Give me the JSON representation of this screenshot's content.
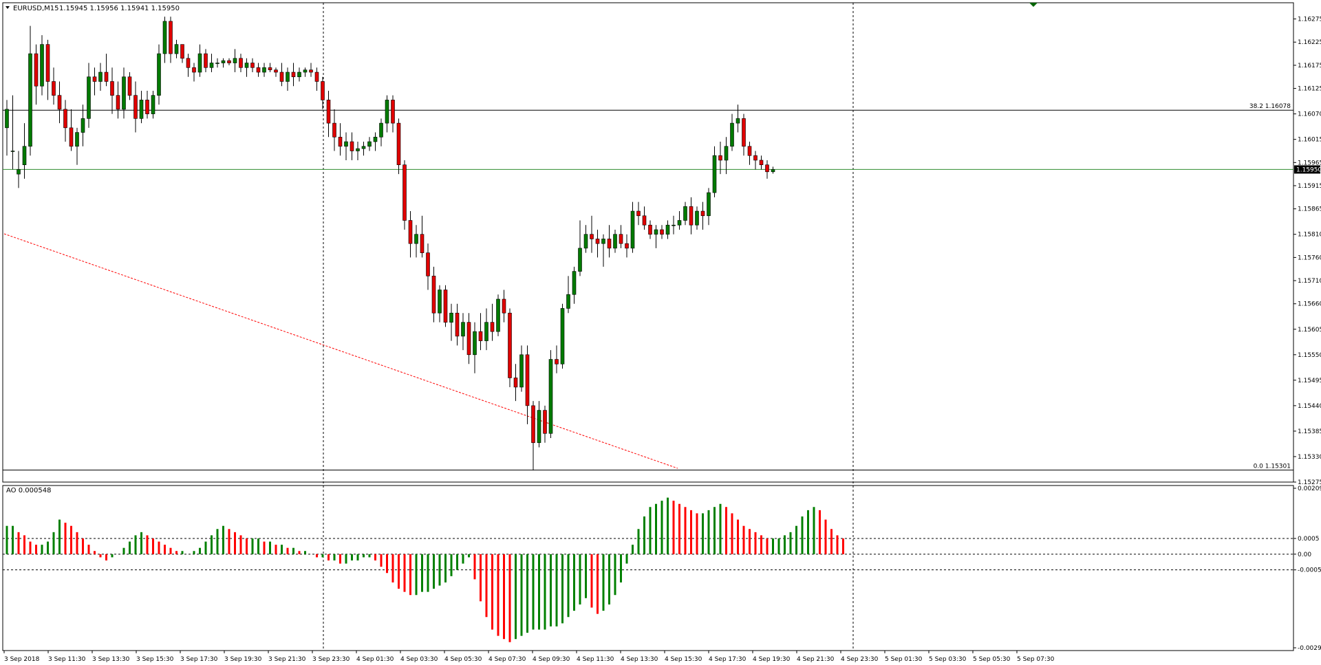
{
  "header": {
    "symbol": "EURUSD,M15",
    "ohlc": "1.15945 1.15956 1.15941 1.15950",
    "indicator": "AO 0.000548"
  },
  "colors": {
    "bull": "#007a00",
    "bear": "#e00000",
    "ao_up": "#008000",
    "ao_down": "#ff0000",
    "price_line": "#2e8b2e",
    "fibo": "#000000",
    "trend": "#ff0000",
    "grid": "#000000"
  },
  "icons": {
    "collapse": "triangle-down-icon",
    "marker": "green-arrow-down-icon"
  },
  "chart_data": {
    "type": "candlestick",
    "price_axis": {
      "ylim": [
        1.15275,
        1.1631
      ],
      "ticks": [
        "1.16275",
        "1.16225",
        "1.16175",
        "1.16125",
        "1.16070",
        "1.16015",
        "1.15965",
        "1.15915",
        "1.15865",
        "1.15810",
        "1.15760",
        "1.15710",
        "1.15660",
        "1.15605",
        "1.15550",
        "1.15495",
        "1.15440",
        "1.15385",
        "1.15330",
        "1.15275"
      ]
    },
    "current_price": "1.15950",
    "fibo": [
      {
        "label": "38.2 1.16078",
        "price": 1.16078
      },
      {
        "label": "0.0 1.15301",
        "price": 1.15301
      }
    ],
    "x_labels": [
      "3 Sep 2018",
      "3 Sep 11:30",
      "3 Sep 13:30",
      "3 Sep 15:30",
      "3 Sep 17:30",
      "3 Sep 19:30",
      "3 Sep 21:30",
      "3 Sep 23:30",
      "4 Sep 01:30",
      "4 Sep 03:30",
      "4 Sep 05:30",
      "4 Sep 07:30",
      "4 Sep 09:30",
      "4 Sep 11:30",
      "4 Sep 13:30",
      "4 Sep 15:30",
      "4 Sep 17:30",
      "4 Sep 19:30",
      "4 Sep 21:30",
      "4 Sep 23:30",
      "5 Sep 01:30",
      "5 Sep 03:30",
      "5 Sep 05:30",
      "5 Sep 07:30"
    ],
    "candles": [
      [
        1.1604,
        1.161,
        1.1598,
        1.1608
      ],
      [
        1.1599,
        1.1611,
        1.1595,
        1.1599
      ],
      [
        1.1594,
        1.1599,
        1.1591,
        1.1595
      ],
      [
        1.1596,
        1.1605,
        1.1593,
        1.16
      ],
      [
        1.16,
        1.1626,
        1.1598,
        1.162
      ],
      [
        1.162,
        1.1622,
        1.1609,
        1.1613
      ],
      [
        1.1613,
        1.1624,
        1.1611,
        1.1622
      ],
      [
        1.1622,
        1.1623,
        1.161,
        1.1614
      ],
      [
        1.1614,
        1.1617,
        1.1609,
        1.1611
      ],
      [
        1.1611,
        1.1614,
        1.1605,
        1.1608
      ],
      [
        1.1608,
        1.161,
        1.1601,
        1.1604
      ],
      [
        1.1604,
        1.1608,
        1.1599,
        1.16
      ],
      [
        1.16,
        1.1604,
        1.1596,
        1.1603
      ],
      [
        1.1603,
        1.1609,
        1.16,
        1.1606
      ],
      [
        1.1606,
        1.1618,
        1.1604,
        1.1615
      ],
      [
        1.1615,
        1.1617,
        1.1611,
        1.1614
      ],
      [
        1.1614,
        1.1618,
        1.1612,
        1.1616
      ],
      [
        1.1616,
        1.162,
        1.1613,
        1.1614
      ],
      [
        1.1614,
        1.1617,
        1.1607,
        1.1611
      ],
      [
        1.1611,
        1.1614,
        1.1606,
        1.1608
      ],
      [
        1.1608,
        1.1617,
        1.1606,
        1.1615
      ],
      [
        1.1615,
        1.1616,
        1.161,
        1.1611
      ],
      [
        1.1611,
        1.1614,
        1.1603,
        1.1606
      ],
      [
        1.1606,
        1.1612,
        1.1605,
        1.161
      ],
      [
        1.161,
        1.1612,
        1.1606,
        1.1607
      ],
      [
        1.1607,
        1.1612,
        1.1606,
        1.1611
      ],
      [
        1.1611,
        1.1622,
        1.1609,
        1.162
      ],
      [
        1.162,
        1.1628,
        1.1618,
        1.1627
      ],
      [
        1.1627,
        1.1628,
        1.1618,
        1.162
      ],
      [
        1.162,
        1.1623,
        1.1619,
        1.1622
      ],
      [
        1.1622,
        1.1622,
        1.1618,
        1.1619
      ],
      [
        1.1619,
        1.162,
        1.1615,
        1.1617
      ],
      [
        1.1617,
        1.1618,
        1.1614,
        1.1616
      ],
      [
        1.1616,
        1.1622,
        1.1615,
        1.162
      ],
      [
        1.162,
        1.1621,
        1.1616,
        1.1617
      ],
      [
        1.1617,
        1.162,
        1.1616,
        1.1618
      ],
      [
        1.1618,
        1.1619,
        1.1617,
        1.1618
      ],
      [
        1.1618,
        1.1619,
        1.1617,
        1.16185
      ],
      [
        1.16185,
        1.1619,
        1.16175,
        1.1618
      ],
      [
        1.1618,
        1.1621,
        1.1616,
        1.1619
      ],
      [
        1.1619,
        1.162,
        1.1616,
        1.1617
      ],
      [
        1.1617,
        1.1619,
        1.1615,
        1.1618
      ],
      [
        1.1618,
        1.1619,
        1.1616,
        1.1617
      ],
      [
        1.1617,
        1.1618,
        1.1615,
        1.1616
      ],
      [
        1.1616,
        1.1618,
        1.1615,
        1.1617
      ],
      [
        1.1617,
        1.1618,
        1.1616,
        1.16165
      ],
      [
        1.16165,
        1.1617,
        1.1615,
        1.1616
      ],
      [
        1.1616,
        1.1618,
        1.1613,
        1.1614
      ],
      [
        1.1614,
        1.1617,
        1.1612,
        1.1616
      ],
      [
        1.1616,
        1.1618,
        1.1613,
        1.1615
      ],
      [
        1.1615,
        1.1617,
        1.1614,
        1.1616
      ],
      [
        1.1616,
        1.1617,
        1.1615,
        1.16165
      ],
      [
        1.16165,
        1.1618,
        1.1615,
        1.1616
      ],
      [
        1.1616,
        1.1617,
        1.1612,
        1.1614
      ],
      [
        1.1614,
        1.1615,
        1.1608,
        1.161
      ],
      [
        1.161,
        1.1612,
        1.1602,
        1.1605
      ],
      [
        1.1605,
        1.1608,
        1.1599,
        1.1602
      ],
      [
        1.1602,
        1.1605,
        1.1598,
        1.16
      ],
      [
        1.16,
        1.1603,
        1.1597,
        1.1601
      ],
      [
        1.1601,
        1.1603,
        1.1597,
        1.1599
      ],
      [
        1.1599,
        1.1601,
        1.1597,
        1.15995
      ],
      [
        1.15995,
        1.1601,
        1.1598,
        1.16
      ],
      [
        1.16,
        1.1602,
        1.1599,
        1.1601
      ],
      [
        1.1601,
        1.1603,
        1.1599,
        1.1602
      ],
      [
        1.1602,
        1.1606,
        1.16,
        1.1605
      ],
      [
        1.1605,
        1.1611,
        1.1603,
        1.161
      ],
      [
        1.161,
        1.1611,
        1.1603,
        1.1605
      ],
      [
        1.1605,
        1.1606,
        1.1594,
        1.1596
      ],
      [
        1.1596,
        1.1597,
        1.1582,
        1.1584
      ],
      [
        1.1584,
        1.1586,
        1.1576,
        1.1579
      ],
      [
        1.1579,
        1.1583,
        1.1576,
        1.1581
      ],
      [
        1.1581,
        1.1585,
        1.1576,
        1.1577
      ],
      [
        1.1577,
        1.1579,
        1.1569,
        1.1572
      ],
      [
        1.1572,
        1.1574,
        1.1562,
        1.1564
      ],
      [
        1.1564,
        1.157,
        1.1562,
        1.1569
      ],
      [
        1.1569,
        1.157,
        1.1561,
        1.1562
      ],
      [
        1.1562,
        1.1566,
        1.1558,
        1.1564
      ],
      [
        1.1564,
        1.1566,
        1.1557,
        1.1559
      ],
      [
        1.1559,
        1.1564,
        1.1556,
        1.1562
      ],
      [
        1.1562,
        1.1564,
        1.1553,
        1.1555
      ],
      [
        1.1555,
        1.1562,
        1.1551,
        1.156
      ],
      [
        1.156,
        1.1564,
        1.1556,
        1.1558
      ],
      [
        1.1558,
        1.1565,
        1.1556,
        1.1562
      ],
      [
        1.1562,
        1.1566,
        1.1558,
        1.156
      ],
      [
        1.156,
        1.1568,
        1.1559,
        1.1567
      ],
      [
        1.1567,
        1.1569,
        1.1562,
        1.1564
      ],
      [
        1.1564,
        1.1565,
        1.1548,
        1.155
      ],
      [
        1.155,
        1.1553,
        1.1545,
        1.1548
      ],
      [
        1.1548,
        1.1557,
        1.1547,
        1.1555
      ],
      [
        1.1555,
        1.1557,
        1.154,
        1.1544
      ],
      [
        1.1544,
        1.1545,
        1.153,
        1.1536
      ],
      [
        1.1536,
        1.1545,
        1.1535,
        1.1543
      ],
      [
        1.1543,
        1.1544,
        1.1536,
        1.1538
      ],
      [
        1.1538,
        1.1556,
        1.1537,
        1.1554
      ],
      [
        1.1554,
        1.1557,
        1.1551,
        1.1553
      ],
      [
        1.1553,
        1.1566,
        1.1552,
        1.1565
      ],
      [
        1.1565,
        1.1572,
        1.1564,
        1.1568
      ],
      [
        1.1568,
        1.1574,
        1.1566,
        1.1573
      ],
      [
        1.1573,
        1.1584,
        1.1572,
        1.1578
      ],
      [
        1.1578,
        1.1583,
        1.1577,
        1.1581
      ],
      [
        1.1581,
        1.1585,
        1.1577,
        1.158
      ],
      [
        1.158,
        1.1582,
        1.1576,
        1.1579
      ],
      [
        1.1579,
        1.1581,
        1.1574,
        1.158
      ],
      [
        1.158,
        1.1583,
        1.1576,
        1.1578
      ],
      [
        1.1578,
        1.1582,
        1.1577,
        1.1581
      ],
      [
        1.1581,
        1.1583,
        1.1578,
        1.1579
      ],
      [
        1.1579,
        1.1581,
        1.1576,
        1.1578
      ],
      [
        1.1578,
        1.1588,
        1.1577,
        1.1586
      ],
      [
        1.1586,
        1.1588,
        1.1583,
        1.1585
      ],
      [
        1.1585,
        1.1587,
        1.1582,
        1.1583
      ],
      [
        1.1583,
        1.1584,
        1.158,
        1.1581
      ],
      [
        1.1581,
        1.1583,
        1.1578,
        1.1582
      ],
      [
        1.1582,
        1.1583,
        1.158,
        1.1581
      ],
      [
        1.1581,
        1.1584,
        1.158,
        1.1583
      ],
      [
        1.1583,
        1.1585,
        1.1581,
        1.1583
      ],
      [
        1.1583,
        1.1586,
        1.1582,
        1.1584
      ],
      [
        1.1584,
        1.1588,
        1.1583,
        1.1587
      ],
      [
        1.1587,
        1.1589,
        1.1581,
        1.1583
      ],
      [
        1.1583,
        1.1587,
        1.1582,
        1.1586
      ],
      [
        1.1586,
        1.1588,
        1.1582,
        1.1585
      ],
      [
        1.1585,
        1.1591,
        1.1583,
        1.159
      ],
      [
        1.159,
        1.16,
        1.1589,
        1.1598
      ],
      [
        1.1598,
        1.1601,
        1.1594,
        1.1597
      ],
      [
        1.1597,
        1.1602,
        1.1594,
        1.16
      ],
      [
        1.16,
        1.1607,
        1.1599,
        1.1605
      ],
      [
        1.1605,
        1.1609,
        1.1603,
        1.1606
      ],
      [
        1.1606,
        1.1607,
        1.1598,
        1.16
      ],
      [
        1.16,
        1.1601,
        1.1596,
        1.1598
      ],
      [
        1.1598,
        1.1599,
        1.1595,
        1.1597
      ],
      [
        1.1597,
        1.1598,
        1.1595,
        1.1596
      ],
      [
        1.1596,
        1.1597,
        1.1593,
        1.15945
      ],
      [
        1.15945,
        1.15956,
        1.15941,
        1.1595
      ]
    ],
    "ao_axis": {
      "ylim": [
        -0.00298,
        0.002097
      ],
      "ticks": [
        "0.002097",
        "0.0005",
        "0.00",
        "-0.0005",
        "-0.00298"
      ],
      "levels": [
        0.0005,
        0,
        -0.0005
      ]
    },
    "ao": [
      0.0009,
      0.0009,
      0.0007,
      0.0006,
      0.0004,
      0.0003,
      0.0003,
      0.0004,
      0.0007,
      0.0011,
      0.001,
      0.0009,
      0.0007,
      0.0005,
      0.0003,
      0.0001,
      -0.0001,
      -0.0002,
      -0.0001,
      0.0,
      0.0002,
      0.0004,
      0.0006,
      0.0007,
      0.0006,
      0.0005,
      0.0004,
      0.0003,
      0.0002,
      0.0001,
      0.0001,
      0.0,
      0.0001,
      0.0002,
      0.0004,
      0.0006,
      0.0008,
      0.0009,
      0.0008,
      0.0007,
      0.0006,
      0.0005,
      0.0005,
      0.0005,
      0.0004,
      0.0004,
      0.0003,
      0.0003,
      0.0002,
      0.0002,
      0.0001,
      0.0001,
      0.0,
      -0.0001,
      -0.0001,
      -0.0002,
      -0.0002,
      -0.0003,
      -0.0003,
      -0.0002,
      -0.0002,
      -0.0001,
      -0.0001,
      -0.0002,
      -0.0004,
      -0.0006,
      -0.0009,
      -0.0011,
      -0.0012,
      -0.0013,
      -0.0013,
      -0.0012,
      -0.0012,
      -0.0011,
      -0.001,
      -0.0009,
      -0.0007,
      -0.0005,
      -0.0003,
      -0.0001,
      -0.0008,
      -0.0015,
      -0.002,
      -0.0024,
      -0.0026,
      -0.0027,
      -0.0028,
      -0.0027,
      -0.0026,
      -0.0025,
      -0.0024,
      -0.0024,
      -0.0024,
      -0.0023,
      -0.0023,
      -0.0022,
      -0.002,
      -0.0018,
      -0.0016,
      -0.0014,
      -0.0017,
      -0.0019,
      -0.0018,
      -0.0016,
      -0.0013,
      -0.0009,
      -0.0003,
      0.0003,
      0.0008,
      0.0012,
      0.0015,
      0.0016,
      0.0017,
      0.0018,
      0.0017,
      0.0016,
      0.0015,
      0.0014,
      0.0013,
      0.0013,
      0.0014,
      0.0015,
      0.0016,
      0.0015,
      0.0013,
      0.0011,
      0.0009,
      0.0008,
      0.0007,
      0.0006,
      0.0005,
      0.0005,
      0.0005,
      0.0006,
      0.0007,
      0.0009,
      0.0012,
      0.0014,
      0.0015,
      0.0014,
      0.0011,
      0.0008,
      0.0006,
      0.0005
    ]
  }
}
